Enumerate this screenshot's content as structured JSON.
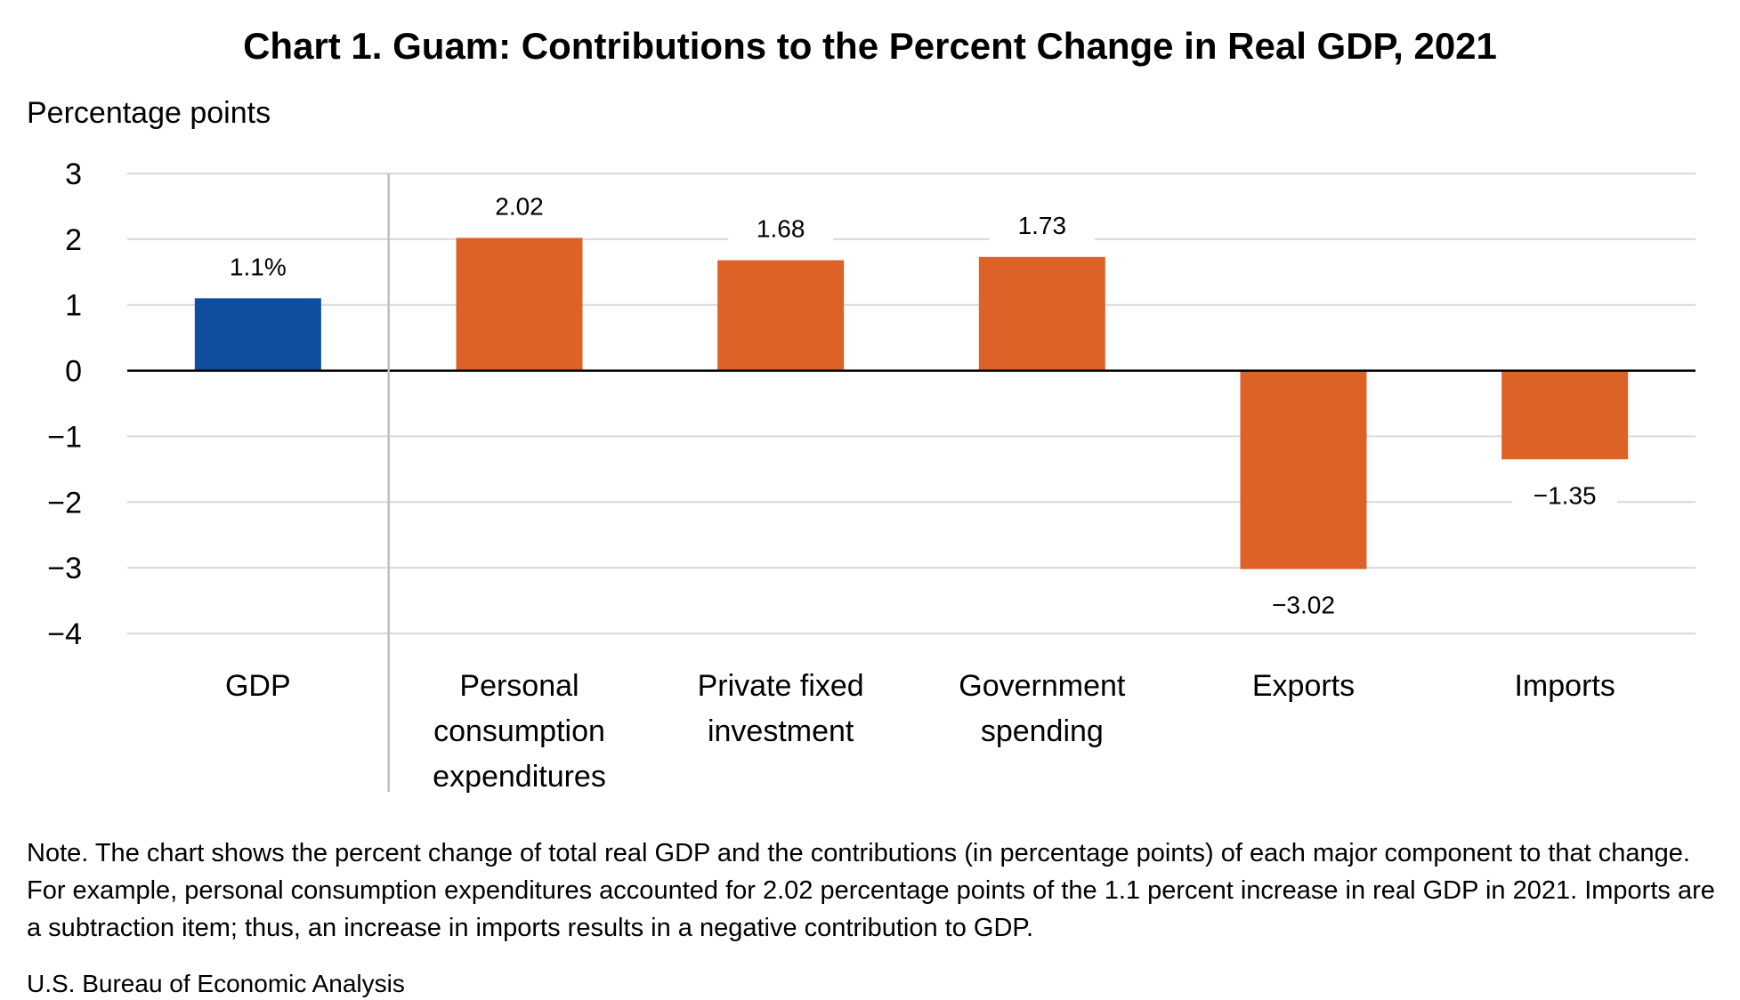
{
  "chart_data": {
    "type": "bar",
    "title": "Chart 1. Guam: Contributions to the Percent Change in Real GDP, 2021",
    "ylabel": "Percentage points",
    "xlabel": "",
    "ylim": [
      -4,
      3
    ],
    "yticks": [
      3,
      2,
      1,
      0,
      -1,
      -2,
      -3,
      -4
    ],
    "ytick_labels": [
      "3",
      "2",
      "1",
      "0",
      "−1",
      "−2",
      "−3",
      "−4"
    ],
    "categories": [
      [
        "GDP"
      ],
      [
        "Personal",
        "consumption",
        "expenditures"
      ],
      [
        "Private fixed",
        "investment"
      ],
      [
        "Government",
        "spending"
      ],
      [
        "Exports"
      ],
      [
        "Imports"
      ]
    ],
    "values": [
      1.1,
      2.02,
      1.68,
      1.73,
      -3.02,
      -1.35
    ],
    "data_labels": [
      "1.1%",
      "2.02",
      "1.68",
      "1.73",
      "−3.02",
      "−1.35"
    ],
    "colors": [
      "#0d4f9c",
      "#dc6228",
      "#dc6228",
      "#dc6228",
      "#dc6228",
      "#dc6228"
    ],
    "gridlines": true,
    "legend": "none"
  },
  "note": "Note. The chart shows the percent change of total real GDP and the contributions (in percentage points) of each major component to that change. For example, personal consumption expenditures accounted for 2.02 percentage points of the 1.1 percent increase in real GDP in 2021. Imports are a subtraction item; thus, an increase in imports results in a negative contribution to GDP.",
  "source": "U.S. Bureau of Economic Analysis"
}
